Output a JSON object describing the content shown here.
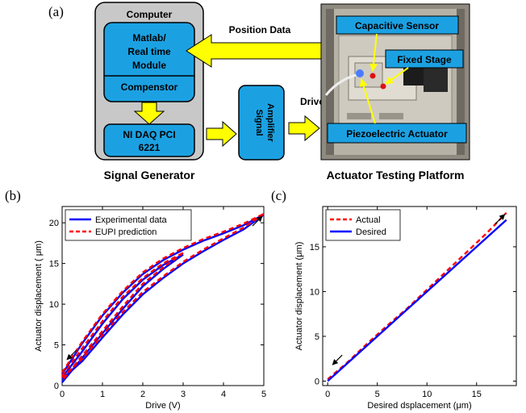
{
  "panel_a": {
    "label": "(a)",
    "computer_title": "Computer",
    "matlab_lines": [
      "Matlab/",
      "Real time",
      "Module"
    ],
    "compensator": "Compenstor",
    "daq_lines": [
      "NI DAQ PCI",
      "6221"
    ],
    "signal_generator": "Signal Generator",
    "amplifier_lines": [
      "Signal",
      "Amplifier"
    ],
    "drive": "Drive",
    "position_data": "Position Data",
    "platform_title": "Actuator Testing Platform",
    "callouts": {
      "capacitive_sensor": "Capacitive Sensor",
      "fixed_stage": "Fixed Stage",
      "piezo_actuator": "Piezoelectric Actuator"
    },
    "colors": {
      "box_blue": "#1ba1e2",
      "arrow_yellow": "#ffff00",
      "panel_gray": "#c8c8c8"
    }
  },
  "chart_data": [
    {
      "panel_label": "(b)",
      "type": "line",
      "xlabel": "Drive (V)",
      "ylabel": "Actuator displacement ( μm)",
      "xlim": [
        0,
        5
      ],
      "ylim": [
        0,
        22
      ],
      "xticks": [
        0,
        1,
        2,
        3,
        4,
        5
      ],
      "yticks": [
        0,
        5,
        10,
        15,
        20
      ],
      "grid": false,
      "legend_position": "top-left",
      "series": [
        {
          "name": "Experimental data",
          "color": "#0000ff",
          "style": "solid",
          "hysteresis_loops": [
            {
              "up": [
                [
                  0,
                  1.0
                ],
                [
                  0.5,
                  4.2
                ],
                [
                  1,
                  7.6
                ],
                [
                  1.5,
                  10.6
                ],
                [
                  2,
                  13.0
                ],
                [
                  2.5,
                  14.8
                ],
                [
                  3,
                  16.1
                ]
              ],
              "down": [
                [
                  3,
                  16.1
                ],
                [
                  2.5,
                  14.3
                ],
                [
                  2,
                  12.2
                ],
                [
                  1.5,
                  9.4
                ],
                [
                  1,
                  6.4
                ],
                [
                  0.5,
                  3.4
                ],
                [
                  0,
                  0.4
                ]
              ]
            },
            {
              "up": [
                [
                  0,
                  1.4
                ],
                [
                  0.5,
                  5.2
                ],
                [
                  1,
                  8.6
                ],
                [
                  1.5,
                  11.4
                ],
                [
                  2,
                  13.7
                ],
                [
                  2.5,
                  15.4
                ],
                [
                  3,
                  16.7
                ],
                [
                  3.5,
                  17.8
                ],
                [
                  4,
                  18.7
                ],
                [
                  4.5,
                  19.7
                ],
                [
                  5,
                  21.0
                ]
              ],
              "down": [
                [
                  5,
                  21.0
                ],
                [
                  4.5,
                  19.2
                ],
                [
                  4,
                  17.9
                ],
                [
                  3.5,
                  16.5
                ],
                [
                  3,
                  15.0
                ],
                [
                  2.5,
                  13.2
                ],
                [
                  2,
                  11.2
                ],
                [
                  1.5,
                  8.7
                ],
                [
                  1,
                  5.9
                ],
                [
                  0.5,
                  3.0
                ],
                [
                  0,
                  0.8
                ]
              ]
            }
          ]
        },
        {
          "name": "EUPI prediction",
          "color": "#ff0000",
          "style": "dashed",
          "hysteresis_loops": [
            {
              "up": [
                [
                  0,
                  1.2
                ],
                [
                  0.5,
                  4.6
                ],
                [
                  1,
                  7.9
                ],
                [
                  1.5,
                  10.9
                ],
                [
                  2,
                  13.2
                ],
                [
                  2.5,
                  15.0
                ],
                [
                  3,
                  16.3
                ]
              ],
              "down": [
                [
                  3,
                  16.3
                ],
                [
                  2.5,
                  14.5
                ],
                [
                  2,
                  12.5
                ],
                [
                  1.5,
                  9.7
                ],
                [
                  1,
                  6.7
                ],
                [
                  0.5,
                  3.7
                ],
                [
                  0,
                  0.6
                ]
              ]
            },
            {
              "up": [
                [
                  0,
                  1.6
                ],
                [
                  0.5,
                  5.4
                ],
                [
                  1,
                  8.8
                ],
                [
                  1.5,
                  11.6
                ],
                [
                  2,
                  13.9
                ],
                [
                  2.5,
                  15.6
                ],
                [
                  3,
                  16.9
                ],
                [
                  3.5,
                  18.0
                ],
                [
                  4,
                  18.9
                ],
                [
                  4.5,
                  19.9
                ],
                [
                  5,
                  21.1
                ]
              ],
              "down": [
                [
                  5,
                  21.1
                ],
                [
                  4.5,
                  19.4
                ],
                [
                  4,
                  18.1
                ],
                [
                  3.5,
                  16.7
                ],
                [
                  3,
                  15.2
                ],
                [
                  2.5,
                  13.4
                ],
                [
                  2,
                  11.5
                ],
                [
                  1.5,
                  9.0
                ],
                [
                  1,
                  6.2
                ],
                [
                  0.5,
                  3.3
                ],
                [
                  0,
                  1.0
                ]
              ]
            }
          ]
        }
      ]
    },
    {
      "panel_label": "(c)",
      "type": "line",
      "xlabel": "Desired dsplacement (μm)",
      "ylabel": "Actuator displacement (μm)",
      "xlim": [
        -0.5,
        19
      ],
      "ylim": [
        -0.5,
        19.5
      ],
      "xticks": [
        0,
        5,
        10,
        15
      ],
      "yticks": [
        0,
        5,
        10,
        15
      ],
      "grid": false,
      "legend_position": "top-left",
      "series": [
        {
          "name": "Actual",
          "color": "#ff0000",
          "style": "dashed",
          "x": [
            0,
            2,
            4,
            6,
            8,
            10,
            12,
            14,
            16,
            18
          ],
          "y": [
            0.2,
            2.1,
            4.2,
            6.2,
            8.1,
            10.2,
            12.3,
            14.4,
            16.5,
            18.8
          ]
        },
        {
          "name": "Desired",
          "color": "#0000ff",
          "style": "solid",
          "x": [
            0,
            18
          ],
          "y": [
            0,
            18
          ]
        }
      ]
    }
  ]
}
